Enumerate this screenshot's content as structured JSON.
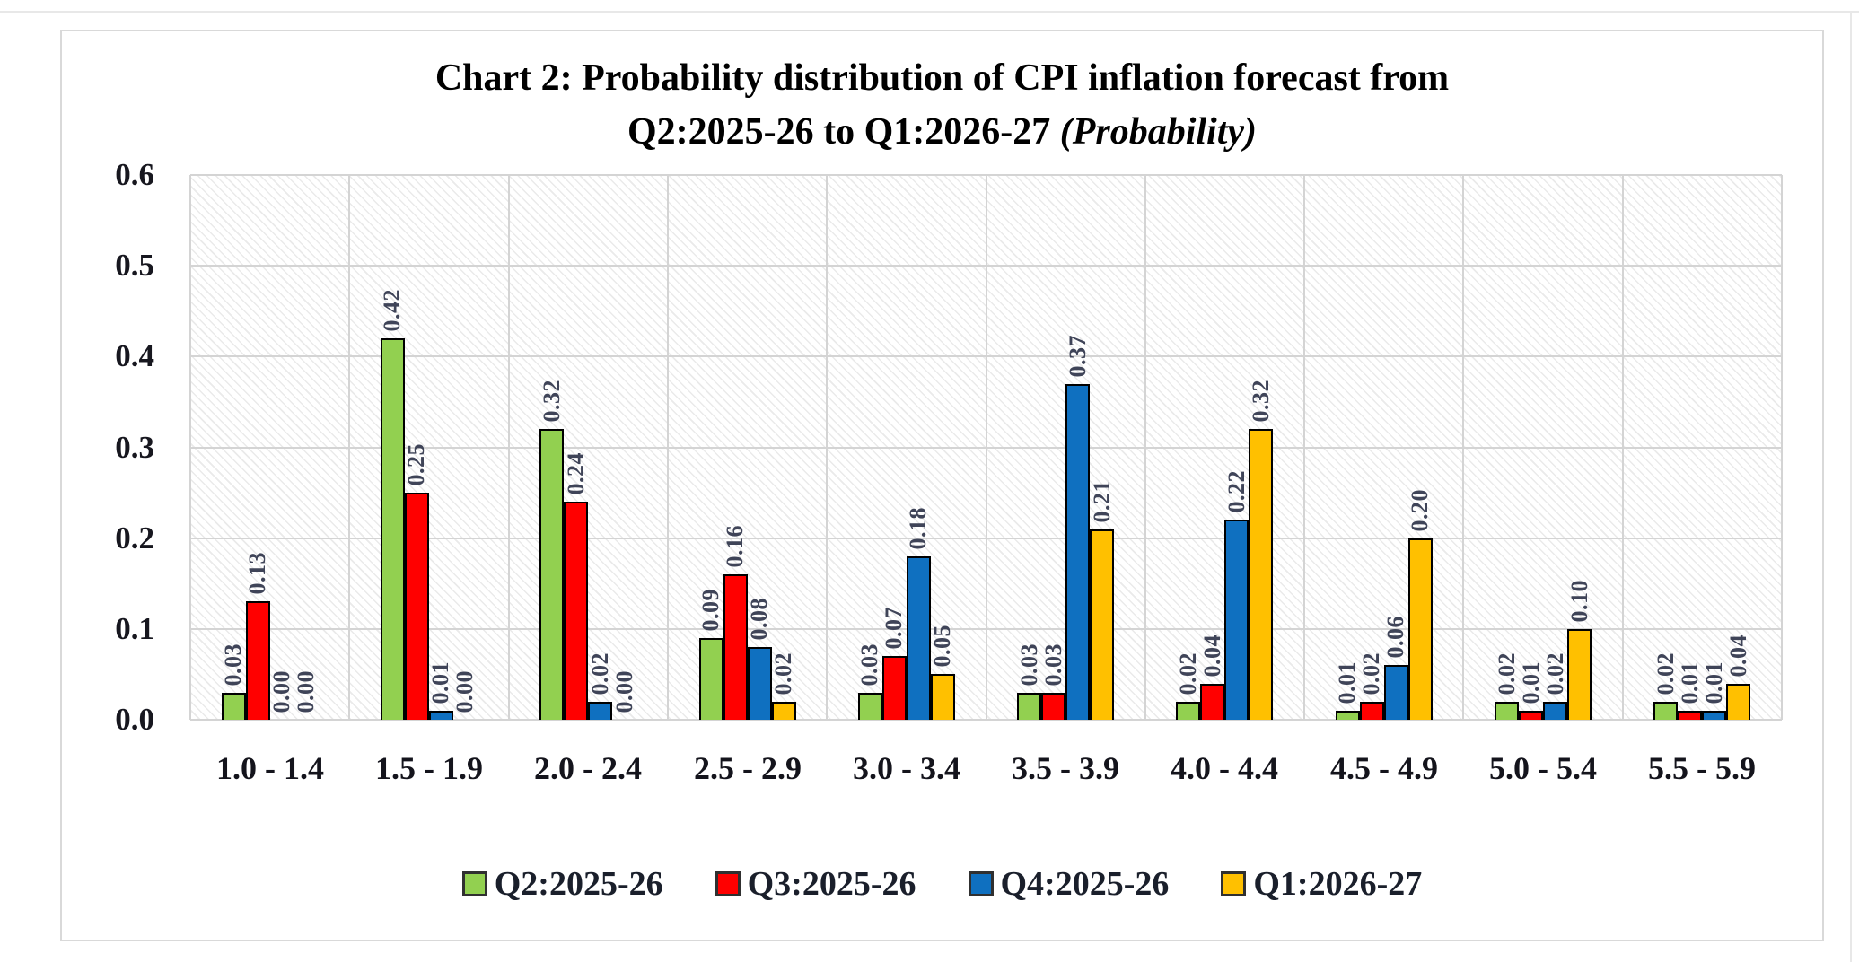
{
  "header": {
    "title_line1": "Chart 2: Probability distribution of CPI inflation forecast from",
    "title_line2": "Q2:2025-26 to Q1:2026-27 ",
    "title_italic": "(Probability)"
  },
  "chart_data": {
    "type": "bar",
    "title": "Chart 2: Probability distribution of CPI inflation forecast from Q2:2025-26 to Q1:2026-27 (Probability)",
    "xlabel": "",
    "ylabel": "",
    "ylim": [
      0,
      0.6
    ],
    "y_ticks": [
      "0.6",
      "0.5",
      "0.4",
      "0.3",
      "0.2",
      "0.1",
      "0.0"
    ],
    "grid": true,
    "legend_position": "bottom",
    "data_labels": true,
    "categories": [
      "1.0 - 1.4",
      "1.5 - 1.9",
      "2.0 - 2.4",
      "2.5 - 2.9",
      "3.0 - 3.4",
      "3.5 - 3.9",
      "4.0 - 4.4",
      "4.5 - 4.9",
      "5.0 - 5.4",
      "5.5 - 5.9"
    ],
    "series": [
      {
        "name": "Q2:2025-26",
        "color": "#92D050",
        "values": [
          0.03,
          0.42,
          0.32,
          0.09,
          0.03,
          0.03,
          0.02,
          0.01,
          0.02,
          0.02
        ]
      },
      {
        "name": "Q3:2025-26",
        "color": "#FF0000",
        "values": [
          0.13,
          0.25,
          0.24,
          0.16,
          0.07,
          0.03,
          0.04,
          0.02,
          0.01,
          0.01
        ]
      },
      {
        "name": "Q4:2025-26",
        "color": "#0F70C0",
        "values": [
          0.0,
          0.01,
          0.02,
          0.08,
          0.18,
          0.37,
          0.22,
          0.06,
          0.02,
          0.01
        ]
      },
      {
        "name": "Q1:2026-27",
        "color": "#FFC000",
        "values": [
          0.0,
          0.0,
          0.0,
          0.02,
          0.05,
          0.21,
          0.32,
          0.2,
          0.1,
          0.04
        ]
      }
    ]
  }
}
